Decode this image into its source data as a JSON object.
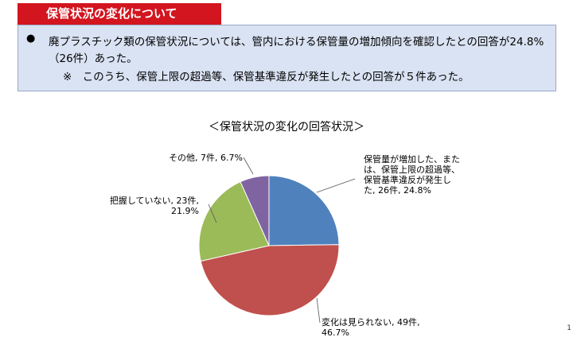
{
  "header": {
    "title": "保管状況の変化について"
  },
  "notice": {
    "bullet": "●",
    "line1": "廃プラスチック類の保管状況については、管内における保管量の増加傾向を確認したとの回答が24.8%",
    "line2": "（26件）あった。",
    "line3": "※　このうち、保管上限の超過等、保管基準違反が発生したとの回答が５件あった。"
  },
  "chart_data": {
    "type": "pie",
    "title": "＜保管状況の変化の回答状況＞",
    "start": "12 o'clock",
    "direction": "clockwise",
    "slices": [
      {
        "label_lines": [
          "保管量が増加した、また",
          "は、保管上限の超過等、",
          "保管基準違反が発生し",
          "た, 26件, 24.8%"
        ],
        "count": 26,
        "percent": 24.8,
        "color": "#4f81bd"
      },
      {
        "label_lines": [
          "変化は見られない, 49件,",
          "46.7%"
        ],
        "count": 49,
        "percent": 46.7,
        "color": "#c0504d"
      },
      {
        "label_lines": [
          "把握していない, 23件,",
          "21.9%"
        ],
        "count": 23,
        "percent": 21.9,
        "color": "#9bbb59"
      },
      {
        "label_lines": [
          "その他, 7件, 6.7%"
        ],
        "count": 7,
        "percent": 6.7,
        "color": "#8064a2"
      }
    ]
  },
  "footer": {
    "corner_mark": "1"
  }
}
